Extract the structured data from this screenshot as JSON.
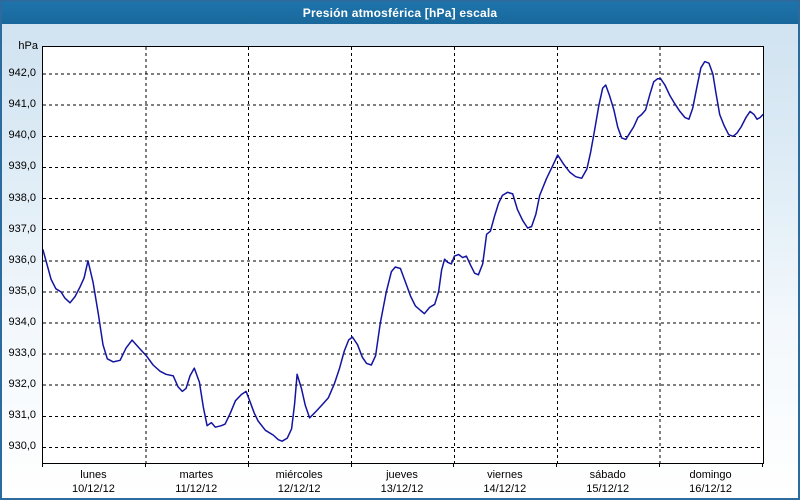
{
  "title_bar": {
    "text": "Presión atmosférica [hPa] escala",
    "bg_color": "#19689c",
    "text_color": "#ffffff"
  },
  "chart_data": {
    "type": "line",
    "title": "Presión atmosférica [hPa] escala",
    "ylabel": "hPa",
    "series_name": "Presión atmosférica",
    "line_color": "#1414a0",
    "grid": true,
    "grid_style": "dashed-black",
    "ylim": [
      929.5,
      942.87
    ],
    "xlim_hours": [
      0,
      168
    ],
    "y_ticks": [
      {
        "v": 942,
        "label": "942,0"
      },
      {
        "v": 941,
        "label": "941,0"
      },
      {
        "v": 940,
        "label": "940,0"
      },
      {
        "v": 939,
        "label": "939,0"
      },
      {
        "v": 938,
        "label": "938,0"
      },
      {
        "v": 937,
        "label": "937,0"
      },
      {
        "v": 936,
        "label": "936,0"
      },
      {
        "v": 935,
        "label": "935,0"
      },
      {
        "v": 934,
        "label": "934,0"
      },
      {
        "v": 933,
        "label": "933,0"
      },
      {
        "v": 932,
        "label": "932,0"
      },
      {
        "v": 931,
        "label": "931,0"
      },
      {
        "v": 930,
        "label": "930,0"
      }
    ],
    "days": [
      {
        "name": "lunes",
        "date": "10/12/12"
      },
      {
        "name": "martes",
        "date": "11/12/12"
      },
      {
        "name": "miércoles",
        "date": "12/12/12"
      },
      {
        "name": "jueves",
        "date": "13/12/12"
      },
      {
        "name": "viernes",
        "date": "14/12/12"
      },
      {
        "name": "sábado",
        "date": "15/12/12"
      },
      {
        "name": "domingo",
        "date": "16/12/12"
      }
    ],
    "points": [
      [
        0.0,
        936.35
      ],
      [
        0.7,
        936.0
      ],
      [
        1.9,
        935.4
      ],
      [
        3.0,
        935.1
      ],
      [
        4.2,
        935.0
      ],
      [
        5.1,
        934.8
      ],
      [
        6.3,
        934.65
      ],
      [
        7.5,
        934.85
      ],
      [
        8.6,
        935.15
      ],
      [
        9.6,
        935.45
      ],
      [
        10.5,
        936.0
      ],
      [
        11.7,
        935.3
      ],
      [
        12.9,
        934.3
      ],
      [
        14.0,
        933.3
      ],
      [
        15.0,
        932.85
      ],
      [
        16.4,
        932.75
      ],
      [
        18.0,
        932.8
      ],
      [
        19.4,
        933.2
      ],
      [
        20.8,
        933.45
      ],
      [
        22.4,
        933.2
      ],
      [
        24.1,
        932.95
      ],
      [
        25.7,
        932.65
      ],
      [
        27.3,
        932.45
      ],
      [
        28.7,
        932.35
      ],
      [
        30.4,
        932.3
      ],
      [
        31.5,
        931.95
      ],
      [
        32.5,
        931.8
      ],
      [
        33.4,
        931.9
      ],
      [
        34.3,
        932.3
      ],
      [
        35.3,
        932.55
      ],
      [
        36.5,
        932.1
      ],
      [
        37.4,
        931.3
      ],
      [
        38.3,
        930.7
      ],
      [
        39.3,
        930.8
      ],
      [
        40.2,
        930.65
      ],
      [
        41.6,
        930.7
      ],
      [
        42.5,
        930.75
      ],
      [
        43.7,
        931.1
      ],
      [
        44.9,
        931.5
      ],
      [
        46.3,
        931.7
      ],
      [
        47.4,
        931.8
      ],
      [
        48.1,
        931.55
      ],
      [
        49.3,
        931.1
      ],
      [
        50.2,
        930.85
      ],
      [
        51.9,
        930.55
      ],
      [
        53.7,
        930.4
      ],
      [
        54.9,
        930.25
      ],
      [
        55.8,
        930.2
      ],
      [
        57.0,
        930.3
      ],
      [
        58.0,
        930.6
      ],
      [
        58.7,
        931.4
      ],
      [
        59.3,
        932.35
      ],
      [
        60.3,
        931.9
      ],
      [
        61.2,
        931.35
      ],
      [
        62.2,
        930.95
      ],
      [
        63.3,
        931.1
      ],
      [
        65.0,
        931.35
      ],
      [
        66.6,
        931.6
      ],
      [
        68.0,
        932.05
      ],
      [
        69.2,
        932.55
      ],
      [
        70.3,
        933.1
      ],
      [
        71.3,
        933.45
      ],
      [
        72.2,
        933.55
      ],
      [
        73.4,
        933.3
      ],
      [
        74.5,
        932.9
      ],
      [
        75.5,
        932.7
      ],
      [
        76.6,
        932.65
      ],
      [
        77.6,
        932.95
      ],
      [
        78.7,
        934.0
      ],
      [
        80.1,
        935.0
      ],
      [
        81.3,
        935.65
      ],
      [
        82.2,
        935.8
      ],
      [
        83.4,
        935.75
      ],
      [
        84.6,
        935.3
      ],
      [
        85.8,
        934.85
      ],
      [
        86.9,
        934.55
      ],
      [
        88.1,
        934.4
      ],
      [
        89.0,
        934.3
      ],
      [
        90.2,
        934.5
      ],
      [
        91.4,
        934.6
      ],
      [
        92.3,
        935.0
      ],
      [
        93.0,
        935.7
      ],
      [
        93.7,
        936.05
      ],
      [
        94.4,
        935.95
      ],
      [
        95.3,
        935.9
      ],
      [
        96.0,
        936.15
      ],
      [
        97.0,
        936.2
      ],
      [
        97.9,
        936.1
      ],
      [
        98.8,
        936.15
      ],
      [
        99.8,
        935.85
      ],
      [
        100.7,
        935.6
      ],
      [
        101.6,
        935.55
      ],
      [
        102.6,
        935.9
      ],
      [
        103.5,
        936.85
      ],
      [
        104.4,
        936.95
      ],
      [
        105.4,
        937.45
      ],
      [
        106.3,
        937.85
      ],
      [
        107.2,
        938.1
      ],
      [
        108.4,
        938.2
      ],
      [
        109.6,
        938.15
      ],
      [
        110.7,
        937.65
      ],
      [
        111.9,
        937.3
      ],
      [
        113.1,
        937.05
      ],
      [
        114.0,
        937.1
      ],
      [
        115.0,
        937.5
      ],
      [
        115.9,
        938.1
      ],
      [
        117.5,
        938.65
      ],
      [
        118.9,
        939.05
      ],
      [
        120.1,
        939.4
      ],
      [
        121.5,
        939.1
      ],
      [
        122.9,
        938.85
      ],
      [
        124.3,
        938.7
      ],
      [
        125.7,
        938.65
      ],
      [
        126.9,
        938.95
      ],
      [
        127.8,
        939.5
      ],
      [
        128.7,
        940.2
      ],
      [
        129.7,
        941.0
      ],
      [
        130.6,
        941.55
      ],
      [
        131.3,
        941.65
      ],
      [
        132.2,
        941.3
      ],
      [
        133.2,
        940.85
      ],
      [
        134.1,
        940.3
      ],
      [
        135.0,
        939.95
      ],
      [
        136.0,
        939.9
      ],
      [
        136.9,
        940.1
      ],
      [
        137.8,
        940.3
      ],
      [
        138.8,
        940.6
      ],
      [
        139.7,
        940.7
      ],
      [
        140.6,
        940.85
      ],
      [
        141.6,
        941.35
      ],
      [
        142.5,
        941.75
      ],
      [
        143.4,
        941.85
      ],
      [
        144.1,
        941.85
      ],
      [
        145.1,
        941.65
      ],
      [
        146.3,
        941.3
      ],
      [
        147.4,
        941.05
      ],
      [
        148.6,
        940.8
      ],
      [
        149.8,
        940.6
      ],
      [
        150.7,
        940.55
      ],
      [
        151.6,
        940.9
      ],
      [
        152.6,
        941.6
      ],
      [
        153.5,
        942.2
      ],
      [
        154.4,
        942.4
      ],
      [
        155.4,
        942.35
      ],
      [
        156.3,
        942.0
      ],
      [
        157.0,
        941.4
      ],
      [
        157.9,
        940.7
      ],
      [
        158.9,
        940.35
      ],
      [
        160.0,
        940.05
      ],
      [
        161.0,
        940.0
      ],
      [
        161.9,
        940.1
      ],
      [
        162.9,
        940.3
      ],
      [
        164.0,
        940.6
      ],
      [
        165.0,
        940.8
      ],
      [
        165.9,
        940.7
      ],
      [
        166.6,
        940.55
      ],
      [
        167.3,
        940.6
      ],
      [
        168.0,
        940.7
      ]
    ]
  }
}
